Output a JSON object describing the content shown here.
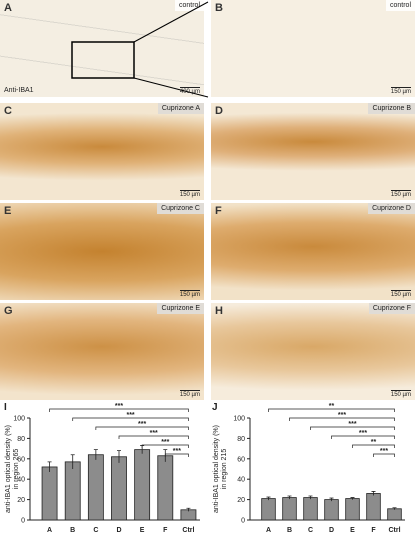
{
  "panels": [
    {
      "letter": "A",
      "caption": "control",
      "stain": "Anti-IBA1",
      "scale": "400 µm"
    },
    {
      "letter": "B",
      "caption": "control",
      "scale": "150 µm"
    },
    {
      "letter": "C",
      "caption": "Cuprizone A",
      "scale": "150 µm"
    },
    {
      "letter": "D",
      "caption": "Cuprizone B",
      "scale": "150 µm"
    },
    {
      "letter": "E",
      "caption": "Cuprizone C",
      "scale": "150 µm"
    },
    {
      "letter": "F",
      "caption": "Cuprizone D",
      "scale": "150 µm"
    },
    {
      "letter": "G",
      "caption": "Cuprizone E",
      "scale": "150 µm"
    },
    {
      "letter": "H",
      "caption": "Cuprizone F",
      "scale": "150 µm"
    }
  ],
  "chart_data": [
    {
      "type": "bar",
      "panel": "I",
      "y_label": [
        "anti-IBA1 optical density (%)",
        "in region 265"
      ],
      "categories": [
        "A",
        "B",
        "C",
        "D",
        "E",
        "F",
        "Ctrl"
      ],
      "values": [
        52,
        57,
        64,
        62,
        69,
        63,
        10
      ],
      "errors": [
        5,
        7,
        5,
        6,
        4,
        6,
        1.5
      ],
      "significance": [
        "***",
        "***",
        "***",
        "***",
        "***",
        "***"
      ],
      "color": "#8c8c8c",
      "ylim": [
        0,
        100
      ],
      "yticks": [
        0,
        20,
        40,
        60,
        80,
        100
      ]
    },
    {
      "type": "bar",
      "panel": "J",
      "y_label": [
        "anti-IBA1 optical density (%)",
        "in region 215"
      ],
      "categories": [
        "A",
        "B",
        "C",
        "D",
        "E",
        "F",
        "Ctrl"
      ],
      "values": [
        21,
        22,
        22,
        20,
        21,
        26,
        11
      ],
      "errors": [
        1.5,
        1.5,
        1.5,
        1.5,
        1,
        2,
        1
      ],
      "significance": [
        "**",
        "***",
        "***",
        "***",
        "**",
        "***"
      ],
      "color": "#8c8c8c",
      "ylim": [
        0,
        100
      ],
      "yticks": [
        0,
        20,
        40,
        60,
        80,
        100
      ]
    }
  ]
}
